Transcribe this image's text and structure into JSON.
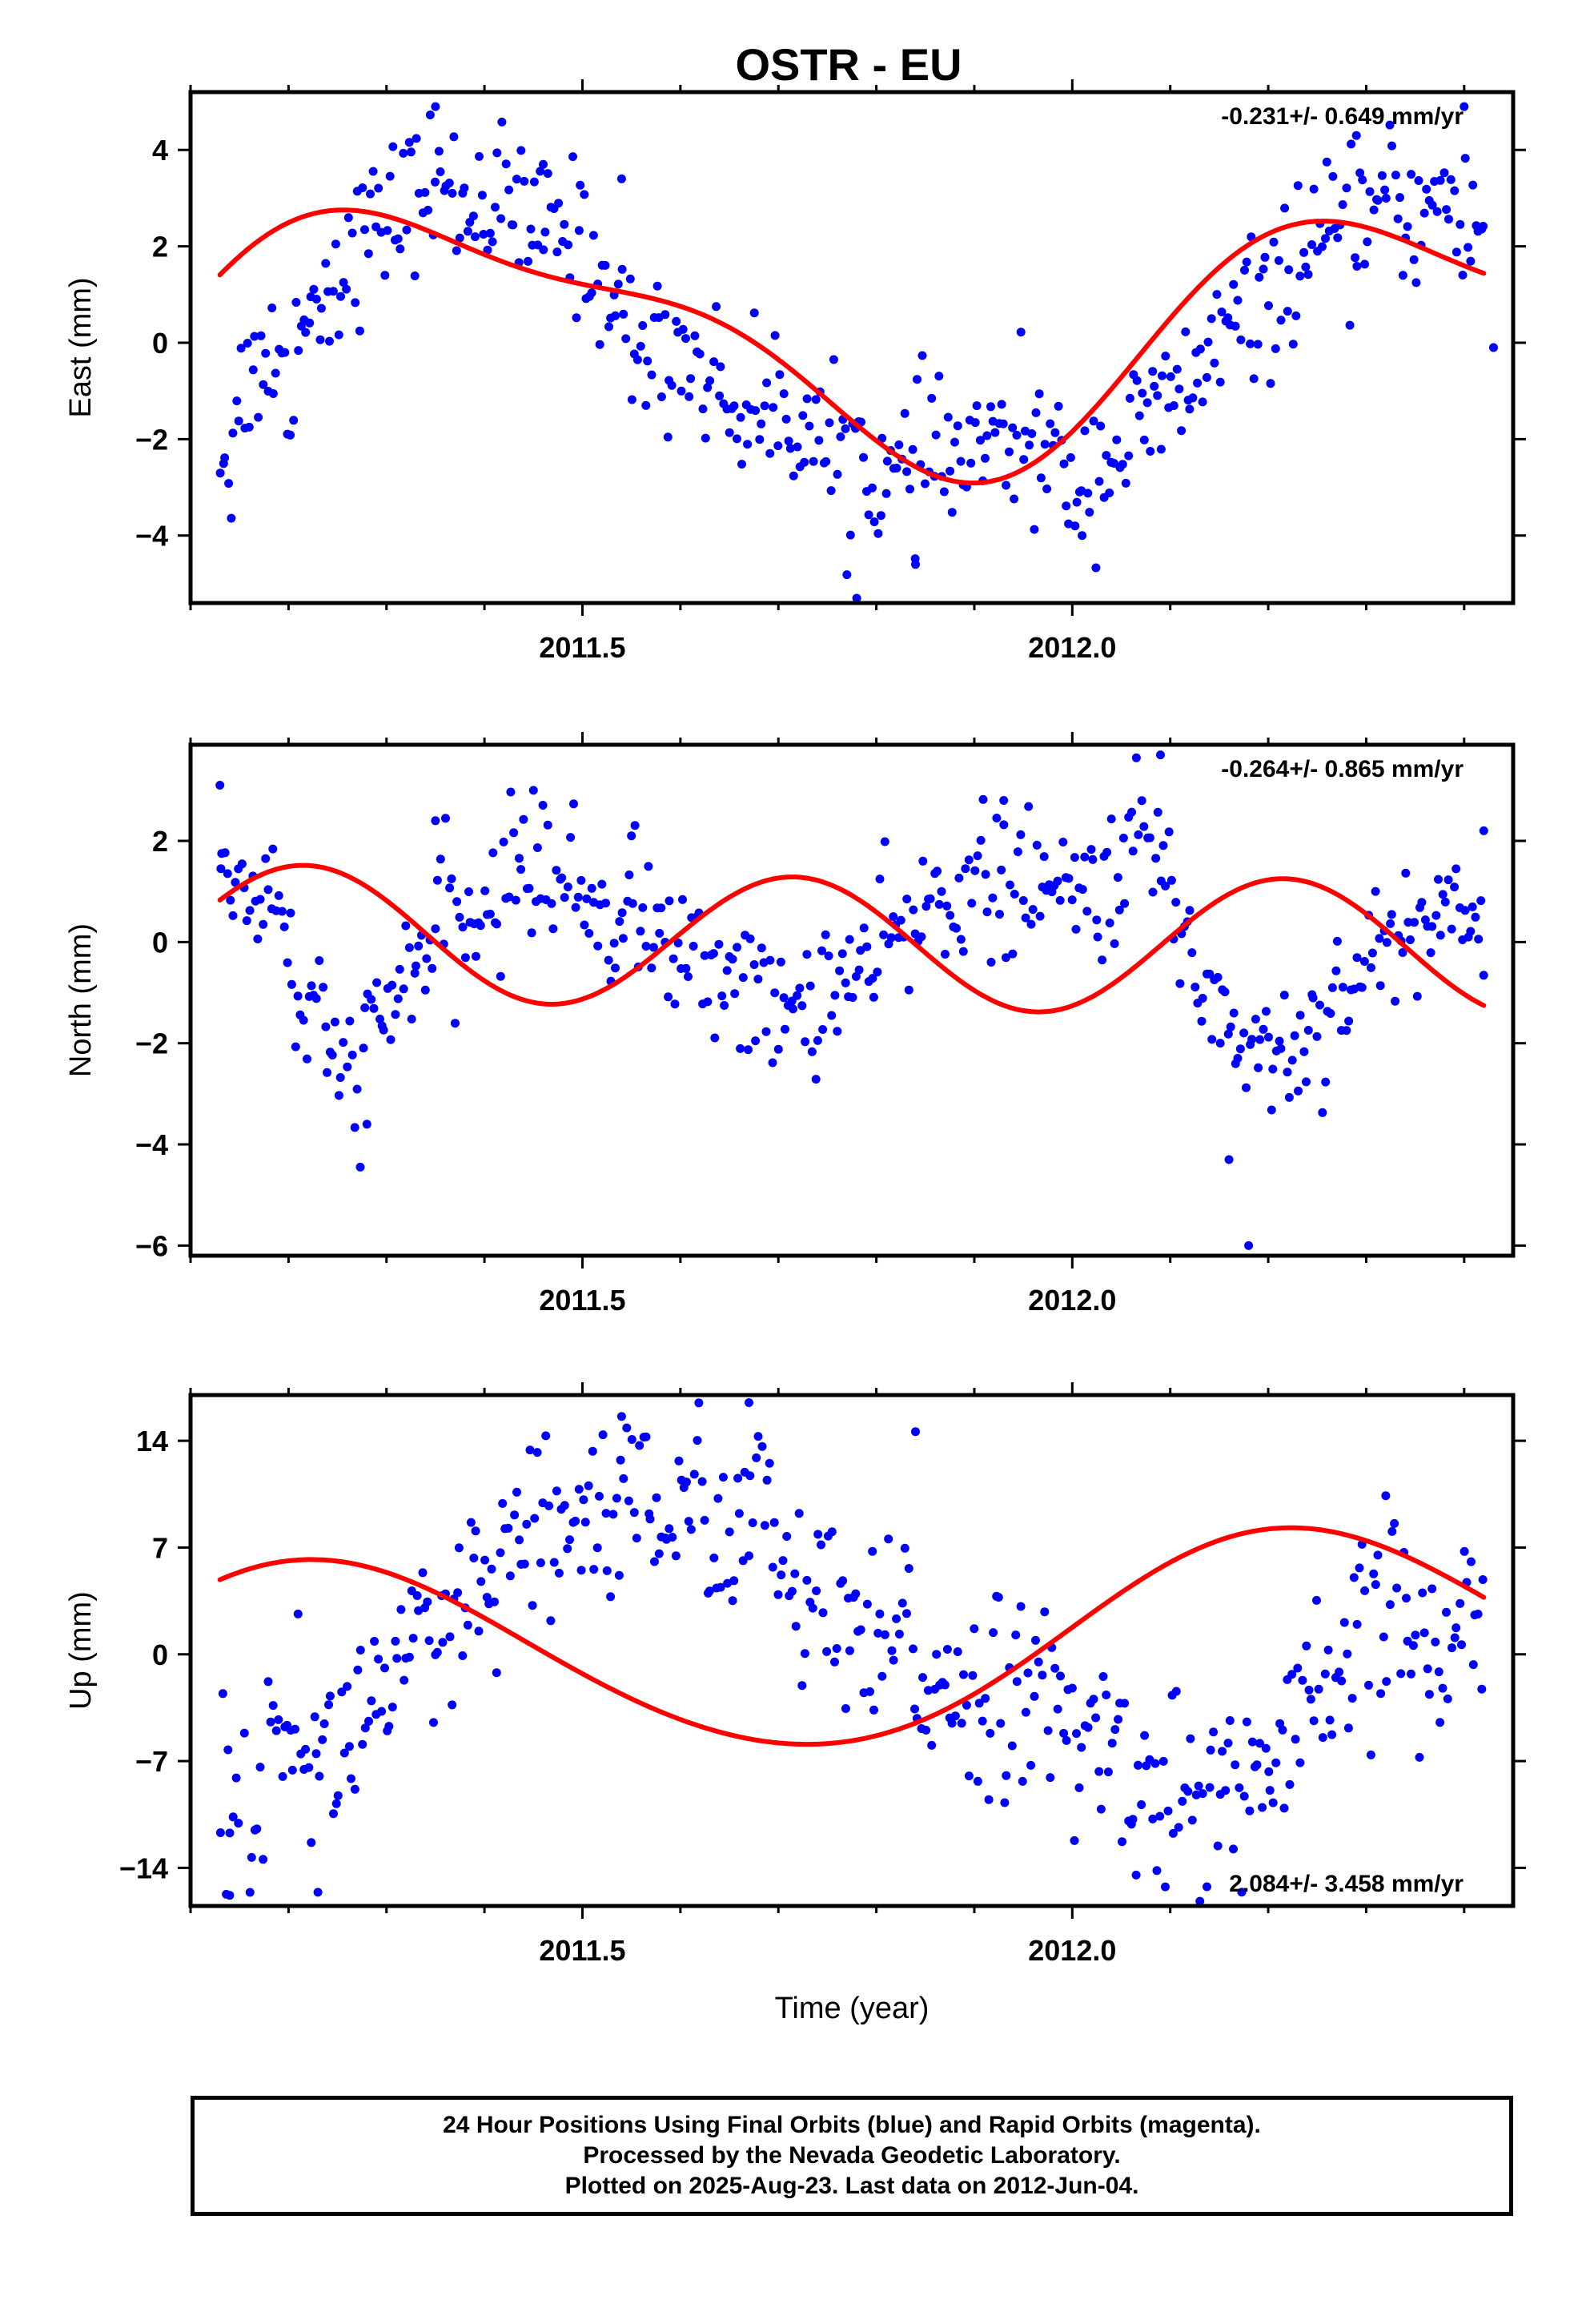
{
  "title": "OSTR - EU",
  "footer": {
    "line1": "24 Hour Positions Using Final Orbits (blue) and Rapid Orbits (magenta).",
    "line2": "Processed by the Nevada Geodetic Laboratory.",
    "line3": "Plotted on 2025-Aug-23. Last data on 2012-Jun-04."
  },
  "colors": {
    "observations": "#0000ff",
    "model_fit": "#ff0000",
    "frame": "#000000"
  },
  "chart_data": [
    {
      "type": "scatter",
      "ylabel": "East (mm)",
      "xlim": [
        2011.1,
        2012.45
      ],
      "ylim": [
        -5.4,
        5.2
      ],
      "xticks": [
        2011.5,
        2012.0
      ],
      "yticks": [
        -4,
        -2,
        0,
        2,
        4
      ],
      "rate_text": "-0.231+/- 0.649 mm/yr",
      "rate_position": "top-right",
      "fit": {
        "offset": 0.2,
        "trend": -0.231,
        "a1": -1.47,
        "b1": 1.91,
        "a2": -0.52,
        "b2": 0.64
      },
      "x": [
        2011.13,
        2011.14,
        2011.15,
        2011.16,
        2011.18,
        2011.2,
        2011.21,
        2011.23,
        2011.25,
        2011.27,
        2011.3,
        2011.33,
        2011.35,
        2011.37,
        2011.4,
        2011.42,
        2011.45,
        2011.47,
        2011.5,
        2011.53,
        2011.55,
        2011.58,
        2011.6,
        2011.63,
        2011.65,
        2011.68,
        2011.7,
        2011.73,
        2011.75,
        2011.78,
        2011.8,
        2011.83,
        2011.85,
        2011.88,
        2011.9,
        2011.93,
        2011.95,
        2011.98,
        2012.0,
        2012.03,
        2012.05,
        2012.08,
        2012.1,
        2012.13,
        2012.15,
        2012.18,
        2012.2,
        2012.23,
        2012.25,
        2012.28,
        2012.3,
        2012.33,
        2012.35,
        2012.38,
        2012.4,
        2012.42
      ],
      "y": [
        -1.9,
        -2.7,
        -1.1,
        -0.7,
        -0.1,
        -1.0,
        0.4,
        0.9,
        1.5,
        2.0,
        2.6,
        3.1,
        3.4,
        3.0,
        2.9,
        3.0,
        2.2,
        2.5,
        2.1,
        0.9,
        0.0,
        -0.3,
        -0.1,
        -0.7,
        -1.2,
        -1.6,
        -1.2,
        -1.7,
        -2.4,
        -2.1,
        -2.8,
        -2.9,
        -2.2,
        -2.6,
        -2.1,
        -2.3,
        -1.8,
        -2.5,
        -2.9,
        -2.4,
        -2.2,
        -1.6,
        -1.3,
        -0.6,
        0.1,
        0.5,
        0.9,
        1.7,
        1.9,
        2.2,
        2.7,
        2.9,
        2.6,
        3.1,
        2.4,
        2.3
      ],
      "scatter_sd": 0.75,
      "outliers": [
        {
          "x": 2011.35,
          "y": 4.9
        },
        {
          "x": 2011.46,
          "y": 3.7
        },
        {
          "x": 2011.54,
          "y": 3.4
        },
        {
          "x": 2011.78,
          "y": -5.3
        },
        {
          "x": 2011.84,
          "y": -4.6
        },
        {
          "x": 2012.01,
          "y": -4.0
        },
        {
          "x": 2012.29,
          "y": 4.3
        },
        {
          "x": 2012.4,
          "y": 4.9
        },
        {
          "x": 2012.43,
          "y": -0.1
        }
      ]
    },
    {
      "type": "scatter",
      "ylabel": "North (mm)",
      "xlim": [
        2011.1,
        2012.45
      ],
      "ylim": [
        -6.2,
        3.9
      ],
      "xticks": [
        2011.5,
        2012.0
      ],
      "yticks": [
        -6,
        -4,
        -2,
        0,
        2
      ],
      "rate_text": "-0.264+/- 0.865 mm/yr",
      "rate_position": "top-right",
      "fit": {
        "offset": 0.0,
        "trend": -0.264,
        "a1": 0.0,
        "b1": 0.05,
        "a2": -1.2,
        "b2": 0.55
      },
      "x": [
        2011.13,
        2011.15,
        2011.17,
        2011.19,
        2011.21,
        2011.23,
        2011.25,
        2011.27,
        2011.29,
        2011.31,
        2011.33,
        2011.36,
        2011.38,
        2011.41,
        2011.43,
        2011.46,
        2011.48,
        2011.5,
        2011.53,
        2011.56,
        2011.58,
        2011.6,
        2011.63,
        2011.65,
        2011.68,
        2011.7,
        2011.73,
        2011.75,
        2011.78,
        2011.8,
        2011.83,
        2011.85,
        2011.88,
        2011.9,
        2011.93,
        2011.95,
        2011.98,
        2012.0,
        2012.03,
        2012.05,
        2012.08,
        2012.1,
        2012.13,
        2012.15,
        2012.18,
        2012.2,
        2012.23,
        2012.25,
        2012.28,
        2012.3,
        2012.33,
        2012.35,
        2012.38,
        2012.4,
        2012.42
      ],
      "y": [
        1.5,
        1.2,
        0.9,
        1.0,
        -1.3,
        -1.8,
        -2.4,
        -2.6,
        -1.7,
        -1.1,
        -0.3,
        0.3,
        0.2,
        0.8,
        1.4,
        1.6,
        1.1,
        1.0,
        0.4,
        0.6,
        0.1,
        -0.3,
        -0.7,
        -0.4,
        -1.1,
        -1.6,
        -1.1,
        -0.9,
        -0.6,
        -0.4,
        0.2,
        0.6,
        1.1,
        1.3,
        0.9,
        1.2,
        0.8,
        1.0,
        1.1,
        1.5,
        2.2,
        0.9,
        -0.6,
        -1.4,
        -2.0,
        -2.1,
        -2.2,
        -1.5,
        -0.8,
        -0.5,
        0.1,
        0.3,
        0.6,
        0.9,
        0.5
      ],
      "scatter_sd": 0.7,
      "outliers": [
        {
          "x": 2011.13,
          "y": 3.1
        },
        {
          "x": 2011.28,
          "y": -3.6
        },
        {
          "x": 2011.35,
          "y": 2.4
        },
        {
          "x": 2011.45,
          "y": 3.0
        },
        {
          "x": 2011.55,
          "y": 2.1
        },
        {
          "x": 2011.93,
          "y": 2.8
        },
        {
          "x": 2012.09,
          "y": 3.7
        },
        {
          "x": 2012.16,
          "y": -4.3
        },
        {
          "x": 2012.18,
          "y": -6.0
        },
        {
          "x": 2012.42,
          "y": 2.2
        }
      ]
    },
    {
      "type": "scatter",
      "ylabel": "Up (mm)",
      "xlabel": "Time (year)",
      "xlim": [
        2011.1,
        2012.45
      ],
      "ylim": [
        -16.5,
        17.0
      ],
      "xticks": [
        2011.5,
        2012.0
      ],
      "yticks": [
        -14,
        -7,
        0,
        7,
        14
      ],
      "rate_text": "2.084+/- 3.458 mm/yr",
      "rate_position": "bottom-right",
      "fit": {
        "offset": 0.5,
        "trend": 2.084,
        "a1": 1.0,
        "b1": 6.5,
        "a2": -0.2,
        "b2": 0.3
      },
      "x": [
        2011.13,
        2011.15,
        2011.17,
        2011.19,
        2011.21,
        2011.23,
        2011.25,
        2011.27,
        2011.3,
        2011.33,
        2011.35,
        2011.38,
        2011.4,
        2011.43,
        2011.45,
        2011.48,
        2011.5,
        2011.53,
        2011.55,
        2011.58,
        2011.6,
        2011.63,
        2011.65,
        2011.68,
        2011.7,
        2011.73,
        2011.75,
        2011.78,
        2011.8,
        2011.83,
        2011.85,
        2011.88,
        2011.9,
        2011.93,
        2011.95,
        2011.98,
        2012.0,
        2012.03,
        2012.05,
        2012.08,
        2012.1,
        2012.13,
        2012.15,
        2012.18,
        2012.2,
        2012.23,
        2012.25,
        2012.28,
        2012.3,
        2012.33,
        2012.35,
        2012.38,
        2012.4,
        2012.42
      ],
      "y": [
        -9.8,
        -12.5,
        -11.0,
        -5.5,
        -3.2,
        -7.8,
        -6.1,
        -4.3,
        -1.8,
        0.2,
        -1.5,
        2.8,
        3.6,
        6.1,
        7.5,
        6.8,
        10.2,
        8.9,
        11.5,
        9.4,
        8.1,
        10.6,
        7.2,
        9.8,
        6.4,
        3.1,
        2.2,
        0.5,
        -0.8,
        1.9,
        -2.4,
        -0.6,
        -3.5,
        -1.2,
        -4.1,
        -2.9,
        -6.2,
        -5.5,
        -7.1,
        -8.3,
        -9.6,
        -8.8,
        -10.4,
        -7.2,
        -8.9,
        -5.1,
        -3.6,
        -1.8,
        1.5,
        3.2,
        0.8,
        -2.1,
        2.9,
        4.6
      ],
      "scatter_sd": 3.2,
      "outliers": [
        {
          "x": 2011.14,
          "y": -15.8
        },
        {
          "x": 2011.23,
          "y": -15.6
        },
        {
          "x": 2011.54,
          "y": 15.6
        },
        {
          "x": 2011.67,
          "y": 16.5
        },
        {
          "x": 2011.84,
          "y": 14.6
        },
        {
          "x": 2012.32,
          "y": 10.4
        }
      ]
    }
  ]
}
